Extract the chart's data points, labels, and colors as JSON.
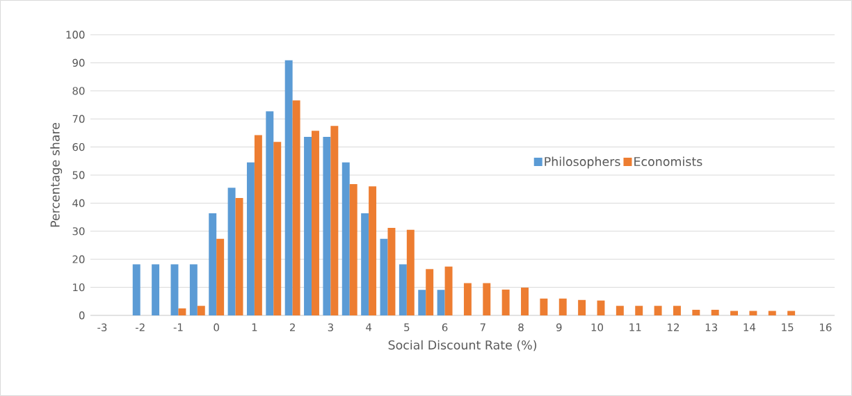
{
  "chart_data": {
    "type": "bar",
    "xlabel": "Social Discount Rate (%)",
    "ylabel": "Percentage share",
    "categories": [
      "-3",
      null,
      "-2",
      null,
      "-1",
      null,
      "0",
      null,
      "1",
      null,
      "2",
      null,
      "3",
      null,
      "4",
      null,
      "5",
      null,
      "6",
      null,
      "7",
      null,
      "8",
      null,
      "9",
      null,
      "10",
      null,
      "11",
      null,
      "12",
      null,
      "13",
      null,
      "14",
      null,
      "15",
      null,
      "16"
    ],
    "series": [
      {
        "name": "Philosophers",
        "color": "#5b9bd5",
        "values": [
          0,
          0,
          18.2,
          18.2,
          18.2,
          18.2,
          36.4,
          45.5,
          54.5,
          72.7,
          90.9,
          63.6,
          63.6,
          54.5,
          36.4,
          27.3,
          18.2,
          9.1,
          9.1,
          0,
          0,
          0,
          0,
          0,
          0,
          0,
          0,
          0,
          0,
          0,
          0,
          0,
          0,
          0,
          0,
          0,
          0,
          0,
          0
        ]
      },
      {
        "name": "Economists",
        "color": "#ed7d31",
        "values": [
          0,
          0,
          0,
          0,
          2.5,
          3.4,
          27.3,
          41.8,
          64.2,
          61.8,
          76.6,
          65.8,
          67.5,
          46.8,
          46,
          31.2,
          30.5,
          16.5,
          17.4,
          11.5,
          11.5,
          9.2,
          9.9,
          6,
          6,
          5.5,
          5.3,
          3.4,
          3.4,
          3.4,
          3.4,
          2,
          2,
          1.6,
          1.6,
          1.6,
          1.6,
          0,
          0
        ]
      }
    ],
    "ylim": [
      0,
      100
    ],
    "yticks": [
      0,
      10,
      20,
      30,
      40,
      50,
      60,
      70,
      80,
      90,
      100
    ],
    "grid": "y",
    "legend": "right"
  }
}
